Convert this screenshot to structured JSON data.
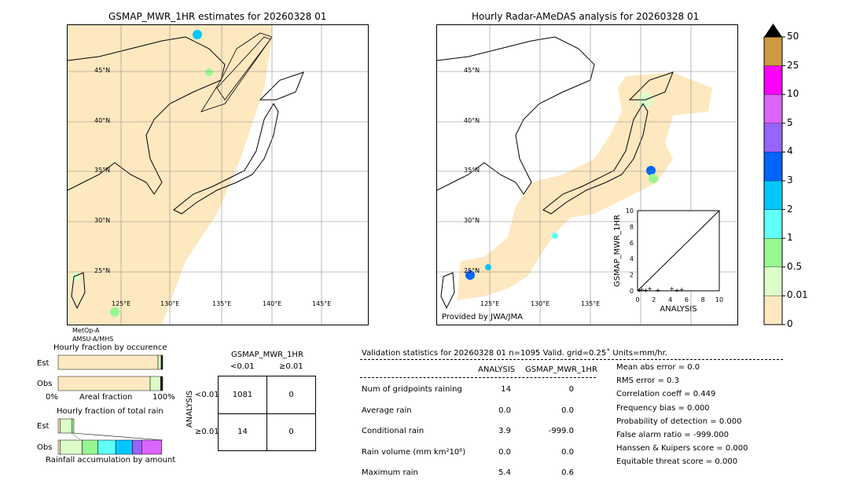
{
  "left_map": {
    "title": "GSMAP_MWR_1HR estimates for 20260328 01",
    "lat_labels": [
      "45°N",
      "40°N",
      "35°N",
      "30°N",
      "25°N"
    ],
    "lon_labels": [
      "125°E",
      "130°E",
      "135°E",
      "140°E",
      "145°E"
    ],
    "sensor_line1": "MetOp-A",
    "sensor_line2": "AMSU-A/MHS"
  },
  "right_map": {
    "title": "Hourly Radar-AMeDAS analysis for 20260328 01",
    "lat_labels": [
      "45°N",
      "40°N",
      "35°N",
      "30°N",
      "25°N"
    ],
    "lon_labels": [
      "125°E",
      "130°E",
      "135°E"
    ],
    "credit": "Provided by JWA/JMA"
  },
  "colorbar": {
    "labels": [
      "0",
      "0.01",
      "0.5",
      "1",
      "2",
      "3",
      "4",
      "5",
      "10",
      "25",
      "50"
    ],
    "colors": [
      "#fde8c0",
      "#dcfcc8",
      "#98f890",
      "#60fff8",
      "#00c8ff",
      "#0064ff",
      "#9664ff",
      "#dc64ff",
      "#ff00ff",
      "#d09a40"
    ]
  },
  "chart_data": [
    {
      "type": "scatter",
      "xlabel": "ANALYSIS",
      "ylabel": "GSMAP_MWR_1HR",
      "xlim": [
        0,
        10
      ],
      "ylim": [
        0,
        10
      ],
      "ticks": [
        "0",
        "2",
        "4",
        "6",
        "8",
        "10"
      ],
      "points": [
        [
          0.2,
          0.1
        ],
        [
          0.5,
          0.2
        ],
        [
          1.0,
          0.1
        ],
        [
          1.5,
          0.3
        ],
        [
          2.5,
          0.1
        ],
        [
          4.2,
          0.3
        ],
        [
          4.8,
          0.1
        ],
        [
          5.4,
          0.2
        ]
      ]
    },
    {
      "type": "bar",
      "title": "Hourly fraction by occurence",
      "rows": [
        "Est",
        "Obs"
      ],
      "xlabel": "Areal fraction",
      "xticks": [
        "0%",
        "100%"
      ],
      "est": [
        0.955,
        0.03,
        0.015
      ],
      "obs": [
        0.88,
        0.1,
        0.02
      ]
    },
    {
      "type": "bar",
      "title": "Hourly fraction of total rain",
      "rows": [
        "Est",
        "Obs"
      ],
      "xlabel": "Rainfall accumulation by amount",
      "est": [
        0.02,
        0.11,
        0.02
      ],
      "obs": [
        0.02,
        0.21,
        0.15,
        0.17,
        0.16,
        0.09,
        0.19
      ]
    }
  ],
  "contingency": {
    "title": "GSMAP_MWR_1HR",
    "col_headers": [
      "<0.01",
      "≥0.01"
    ],
    "row_label": "ANALYSIS",
    "row_headers": [
      "<0.01",
      "≥0.01"
    ],
    "cells": [
      [
        "1081",
        "0"
      ],
      [
        "14",
        "0"
      ]
    ]
  },
  "stats": {
    "header": "Validation statistics for 20260328 01  n=1095 Valid. grid=0.25˚ Units=mm/hr.",
    "col1": "ANALYSIS",
    "col2": "GSMAP_MWR_1HR",
    "rows": [
      {
        "label": "Num of gridpoints raining",
        "a": "14",
        "g": "0"
      },
      {
        "label": "Average rain",
        "a": "0.0",
        "g": "0.0"
      },
      {
        "label": "Conditional rain",
        "a": "3.9",
        "g": "-999.0"
      },
      {
        "label": "Rain volume (mm km²10⁶)",
        "a": "0.0",
        "g": "0.0"
      },
      {
        "label": "Maximum rain",
        "a": "5.4",
        "g": "0.6"
      }
    ],
    "scores": [
      "Mean abs error =    0.0",
      "RMS error =    0.3",
      "Correlation coeff =  0.449",
      "Frequency bias =  0.000",
      "Probability of detection =  0.000",
      "False alarm ratio = -999.000",
      "Hanssen & Kuipers score =  0.000",
      "Equitable threat score =  0.000"
    ]
  }
}
